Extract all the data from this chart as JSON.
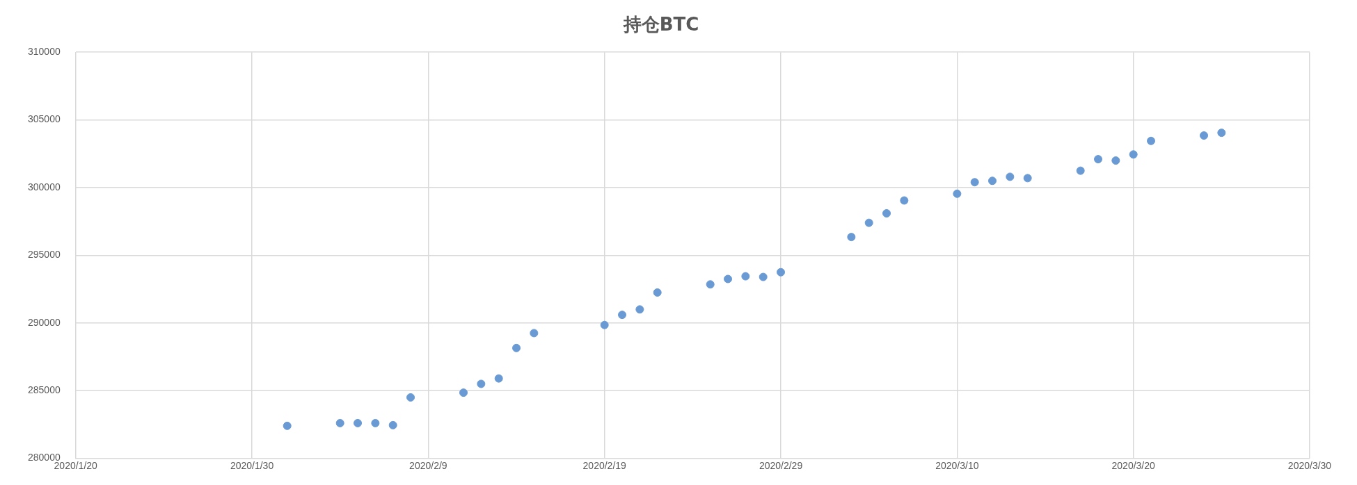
{
  "chart_data": {
    "type": "scatter",
    "title": "持仓BTC",
    "x": [
      "2020-02-01",
      "2020-02-04",
      "2020-02-05",
      "2020-02-06",
      "2020-02-07",
      "2020-02-08",
      "2020-02-11",
      "2020-02-12",
      "2020-02-13",
      "2020-02-14",
      "2020-02-15",
      "2020-02-19",
      "2020-02-20",
      "2020-02-21",
      "2020-02-22",
      "2020-02-25",
      "2020-02-26",
      "2020-02-27",
      "2020-02-28",
      "2020-02-29",
      "2020-03-04",
      "2020-03-05",
      "2020-03-06",
      "2020-03-07",
      "2020-03-10",
      "2020-03-11",
      "2020-03-12",
      "2020-03-13",
      "2020-03-14",
      "2020-03-17",
      "2020-03-18",
      "2020-03-19",
      "2020-03-20",
      "2020-03-21",
      "2020-03-24",
      "2020-03-25"
    ],
    "series": [
      {
        "color": "#6a9ad4",
        "values": [
          282400,
          282600,
          282600,
          282600,
          282450,
          284500,
          284850,
          285500,
          285900,
          288150,
          289250,
          289850,
          290600,
          291000,
          292250,
          292850,
          293250,
          293450,
          293400,
          293750,
          296350,
          297400,
          298100,
          299050,
          299550,
          300400,
          300500,
          300800,
          300700,
          301250,
          302100,
          302000,
          302450,
          303450,
          303850,
          304050
        ]
      }
    ],
    "xlim": [
      "2020-01-20",
      "2020-03-30"
    ],
    "xticks": [
      {
        "value": "2020-01-20",
        "label": "2020/1/20"
      },
      {
        "value": "2020-01-30",
        "label": "2020/1/30"
      },
      {
        "value": "2020-02-09",
        "label": "2020/2/9"
      },
      {
        "value": "2020-02-19",
        "label": "2020/2/19"
      },
      {
        "value": "2020-02-29",
        "label": "2020/2/29"
      },
      {
        "value": "2020-03-10",
        "label": "2020/3/10"
      },
      {
        "value": "2020-03-20",
        "label": "2020/3/20"
      },
      {
        "value": "2020-03-30",
        "label": "2020/3/30"
      }
    ],
    "ylim": [
      280000,
      310000
    ],
    "yticks": [
      280000,
      285000,
      290000,
      295000,
      300000,
      305000,
      310000
    ],
    "grid": true,
    "legend": false,
    "marker": "circle"
  }
}
